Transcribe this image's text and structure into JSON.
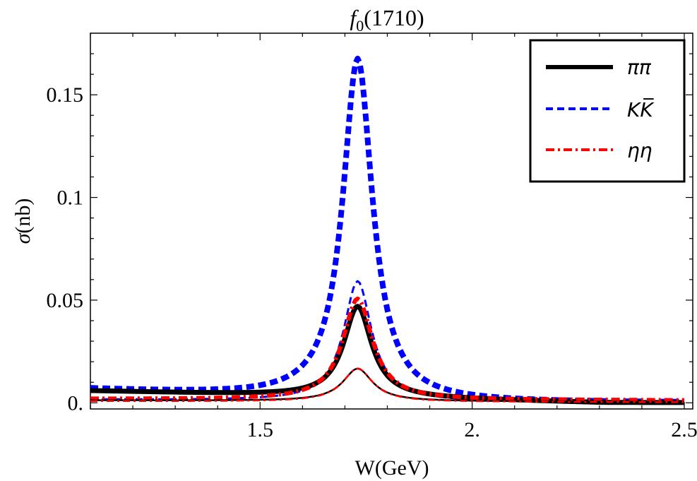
{
  "chart_data": {
    "type": "line",
    "title_base": "f",
    "title_sub": "0",
    "title_rest": "(1710)",
    "xlabel": "W(GeV)",
    "ylabel_symbol": "σ",
    "ylabel_unit": "(nb)",
    "xlim": [
      1.1,
      2.52
    ],
    "ylim": [
      -0.003,
      0.18
    ],
    "xticks": [
      {
        "value": 1.5,
        "label": "1.5"
      },
      {
        "value": 2.0,
        "label": "2."
      },
      {
        "value": 2.5,
        "label": "2.5"
      }
    ],
    "yticks": [
      {
        "value": 0.0,
        "label": "0."
      },
      {
        "value": 0.05,
        "label": "0.05"
      },
      {
        "value": 0.1,
        "label": "0.1"
      },
      {
        "value": 0.15,
        "label": "0.15"
      }
    ],
    "legend_position": "top-right",
    "legend": [
      {
        "label": "ππ",
        "style": "solid",
        "color": "#000000"
      },
      {
        "label": "KK̅",
        "style": "dashed",
        "color": "#0000ff"
      },
      {
        "label": "ηη",
        "style": "dashdot",
        "color": "#ff0000"
      }
    ],
    "series": [
      {
        "name": "K K-bar (large)",
        "style": "dashed-thick",
        "color": "#0000ff",
        "peak_x": 1.73,
        "peak_y": 0.173,
        "gamma": 0.085,
        "baseline": 0.0065,
        "base_slope": -0.0085
      },
      {
        "name": "K K-bar (small)",
        "style": "dashed-thin",
        "color": "#0000ff",
        "peak_x": 1.73,
        "peak_y": 0.06,
        "gamma": 0.08,
        "baseline": 0.0015,
        "base_slope": -0.0012
      },
      {
        "name": "π π (large)",
        "style": "solid-thick",
        "color": "#000000",
        "peak_x": 1.73,
        "peak_y": 0.05,
        "gamma": 0.08,
        "baseline": 0.0058,
        "base_slope": -0.0048
      },
      {
        "name": "η η (large)",
        "style": "dashdot-thick",
        "color": "#ff0000",
        "peak_x": 1.73,
        "peak_y": 0.051,
        "gamma": 0.085,
        "baseline": 0.0018,
        "base_slope": -0.0005
      },
      {
        "name": "π π (small)",
        "style": "solid-thin",
        "color": "#000000",
        "peak_x": 1.73,
        "peak_y": 0.017,
        "gamma": 0.085,
        "baseline": 0.0012,
        "base_slope": -0.0006
      },
      {
        "name": "η η (small)",
        "style": "dashdot-thin",
        "color": "#ff0000",
        "peak_x": 1.73,
        "peak_y": 0.017,
        "gamma": 0.085,
        "baseline": 0.0008,
        "base_slope": -0.0004
      }
    ]
  }
}
